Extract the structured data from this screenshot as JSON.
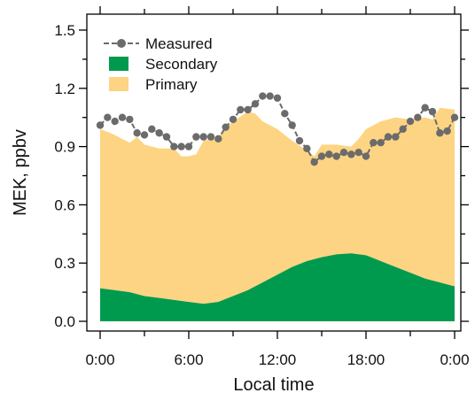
{
  "chart_data": {
    "type": "area",
    "xlabel": "Local time",
    "ylabel": "MEK, ppbv",
    "xlim": [
      0,
      24
    ],
    "ylim": [
      0,
      1.5
    ],
    "x_ticks": [
      0,
      6,
      12,
      18,
      24
    ],
    "x_tick_labels": [
      "0:00",
      "6:00",
      "12:00",
      "18:00",
      "0:00"
    ],
    "y_ticks": [
      0.0,
      0.3,
      0.6,
      0.9,
      1.2,
      1.5
    ],
    "y_tick_labels": [
      "0.0",
      "0.3",
      "0.6",
      "0.9",
      "1.2",
      "1.5"
    ],
    "grid": false,
    "legend": "top-left",
    "x_units": "hours of local time",
    "series": [
      {
        "name": "Measured",
        "kind": "line-markers",
        "color": "#6b6b6b",
        "x": [
          0,
          0.5,
          1,
          1.5,
          2,
          2.5,
          3,
          3.5,
          4,
          4.5,
          5,
          5.5,
          6,
          6.5,
          7,
          7.5,
          8,
          8.5,
          9,
          9.5,
          10,
          10.5,
          11,
          11.5,
          12,
          12.5,
          13,
          13.5,
          14,
          14.5,
          15,
          15.5,
          16,
          16.5,
          17,
          17.5,
          18,
          18.5,
          19,
          19.5,
          20,
          20.5,
          21,
          21.5,
          22,
          22.5,
          23,
          23.5,
          24
        ],
        "y": [
          1.01,
          1.05,
          1.03,
          1.05,
          1.04,
          0.97,
          0.96,
          0.99,
          0.97,
          0.95,
          0.9,
          0.9,
          0.9,
          0.95,
          0.95,
          0.95,
          0.94,
          1.0,
          1.04,
          1.09,
          1.09,
          1.12,
          1.16,
          1.16,
          1.15,
          1.07,
          1.01,
          0.93,
          0.89,
          0.82,
          0.85,
          0.86,
          0.85,
          0.87,
          0.86,
          0.87,
          0.85,
          0.92,
          0.92,
          0.95,
          0.95,
          0.99,
          1.03,
          1.05,
          1.1,
          1.08,
          0.97,
          0.98,
          1.05
        ]
      },
      {
        "name": "Secondary",
        "kind": "area",
        "color": "#009a4e",
        "x": [
          0,
          1,
          2,
          3,
          4,
          5,
          6,
          7,
          8,
          9,
          10,
          11,
          12,
          13,
          14,
          15,
          16,
          17,
          18,
          19,
          20,
          21,
          22,
          23,
          24
        ],
        "y": [
          0.17,
          0.16,
          0.15,
          0.13,
          0.12,
          0.11,
          0.1,
          0.09,
          0.1,
          0.13,
          0.16,
          0.2,
          0.24,
          0.28,
          0.31,
          0.33,
          0.345,
          0.35,
          0.34,
          0.31,
          0.28,
          0.25,
          0.22,
          0.2,
          0.18
        ]
      },
      {
        "name": "Primary",
        "kind": "area-stacked-total",
        "color": "#fdd483",
        "x": [
          0,
          1,
          2,
          2.5,
          3,
          4,
          5,
          5.5,
          6,
          6.5,
          7,
          8,
          9,
          10,
          10.5,
          11,
          12,
          12.5,
          13,
          14,
          14.5,
          15,
          16,
          17,
          17.5,
          18,
          19,
          20,
          21,
          22,
          22.5,
          23,
          24
        ],
        "y": [
          0.99,
          0.96,
          0.92,
          0.95,
          0.91,
          0.89,
          0.89,
          0.85,
          0.85,
          0.86,
          0.93,
          0.95,
          1.03,
          1.08,
          1.07,
          1.03,
          0.99,
          0.96,
          0.93,
          0.88,
          0.85,
          0.91,
          0.91,
          0.9,
          0.94,
          0.99,
          1.03,
          1.05,
          1.04,
          1.05,
          1.04,
          1.1,
          1.09
        ]
      }
    ]
  }
}
